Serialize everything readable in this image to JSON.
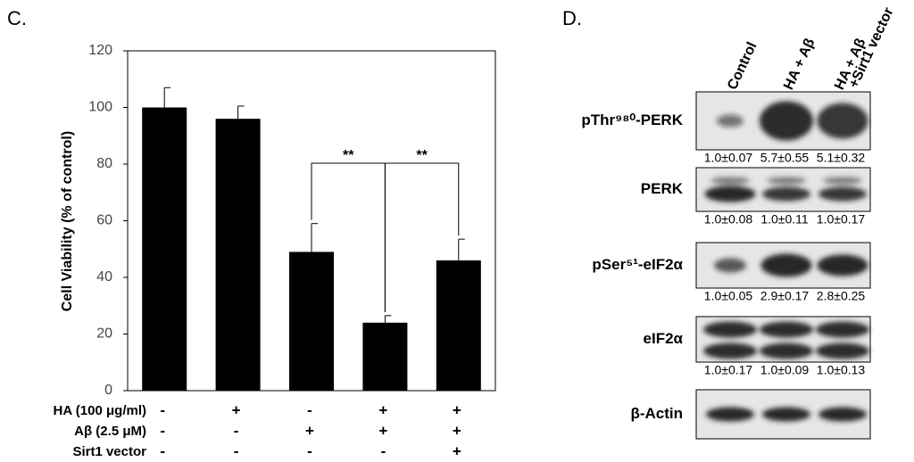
{
  "panel_c": {
    "label": "C."
  },
  "chart_data": {
    "type": "bar",
    "y_label": "Cell Viability (% of control)",
    "categories": [
      null,
      null,
      null,
      null,
      null
    ],
    "values": [
      100,
      96,
      49,
      24,
      46
    ],
    "errors": [
      7,
      4.5,
      10,
      2.5,
      7.5
    ],
    "color": "#000000",
    "ylim": [
      0,
      120
    ],
    "yticks": [
      0,
      20,
      40,
      60,
      80,
      100,
      120
    ],
    "annotations": [
      "**",
      "**"
    ],
    "conditions": [
      {
        "name": "HA (100 μg/ml)",
        "signs": [
          "-",
          "+",
          "-",
          "+",
          "+"
        ]
      },
      {
        "name": "Aβ (2.5 μM)",
        "signs": [
          "-",
          "-",
          "+",
          "+",
          "+"
        ]
      },
      {
        "name": "Sirt1 vector",
        "signs": [
          "-",
          "-",
          "-",
          "-",
          "+"
        ]
      }
    ]
  },
  "blot": {
    "label": "D.",
    "columns": [
      "Control",
      "HA + Aβ",
      [
        "HA + Aβ",
        "+Sirt1 vector"
      ]
    ],
    "rows": [
      {
        "label": "pThr⁹⁸⁰-PERK",
        "quant": [
          "1.0±0.07",
          "5.7±0.55",
          "5.1±0.32"
        ]
      },
      {
        "label": "PERK",
        "quant": [
          "1.0±0.08",
          "1.0±0.11",
          "1.0±0.17"
        ]
      },
      {
        "label": "pSer⁵¹-eIF2α",
        "quant": [
          "1.0±0.05",
          "2.9±0.17",
          "2.8±0.25"
        ]
      },
      {
        "label": "eIF2α",
        "quant": [
          "1.0±0.17",
          "1.0±0.09",
          "1.0±0.13"
        ]
      },
      {
        "label": "β-Actin"
      }
    ]
  }
}
